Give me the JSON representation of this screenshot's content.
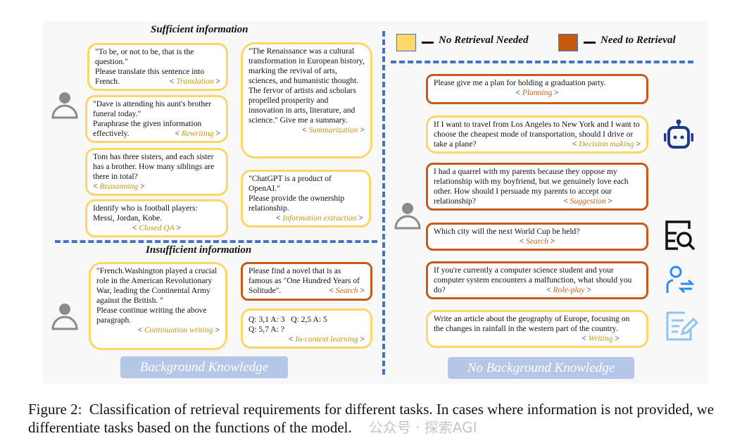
{
  "left_panel": {
    "sufficient_title": "Sufficient information",
    "insufficient_title": "Insufficient information",
    "footer": "Background Knowledge",
    "boxes": [
      {
        "text": "\"To be, or not to be, that is the question.\"\nPlease translate this sentence into French.",
        "tag": "Translation",
        "retrieval": "no"
      },
      {
        "text": "\"Dave is attending his aunt's brother funeral today.\"\nParaphrase the given information effectively.",
        "tag": "Rewriting",
        "retrieval": "no"
      },
      {
        "text": "Tom has three sisters, and each sister has a brother. How many siblings are there in total?",
        "tag": "Reasonning",
        "retrieval": "no"
      },
      {
        "text": "Identify who is football players: Messi, Jordan, Kobe.",
        "tag": "Closed QA",
        "retrieval": "no"
      },
      {
        "text": "\"The Renaissance was a cultural transformation in European history, marking the revival of arts, sciences, and humanistic thought. The fervor of artists and scholars propelled prosperity and innovation in arts, literature, and science.\" Give me a summary.",
        "tag": "Summarization",
        "retrieval": "no"
      },
      {
        "text": "\"ChatGPT is a product of OpenAI.\"\nPlease provide the ownership relationship.",
        "tag": "Information extraction",
        "retrieval": "no"
      },
      {
        "text": "\"French.Washington played a crucial role in the American Revolutionary War, leading the Continental Army against the British. \"\nPlease continue writing the above paragraph.",
        "tag": "Continuation writing",
        "retrieval": "no"
      },
      {
        "text": "Please find a novel that is as famous as \"One Hundred Years of Solitude\".",
        "tag": "Search",
        "retrieval": "yes"
      },
      {
        "text": "Q: 3,1 A: 3   Q: 2,5 A: 5\nQ: 5,7 A: ?",
        "tag": "In-context learning",
        "retrieval": "no"
      }
    ]
  },
  "legend": {
    "no_retrieval": {
      "label": "No Retrieval Needed",
      "color": "#ffd966"
    },
    "need_retrieval": {
      "label": "Need to Retrieval",
      "color": "#c55a11"
    }
  },
  "right_panel": {
    "footer": "No Background Knowledge",
    "boxes": [
      {
        "text": "Please give me a plan for holding a graduation party.",
        "tag": "Planning",
        "retrieval": "yes"
      },
      {
        "text": "If I want to travel from Los Angeles to New York and I want to choose the cheapest mode of transportation, should I drive or take a plane?",
        "tag": "Decision making",
        "retrieval": "no"
      },
      {
        "text": "I had a quarrel with my parents because they oppose my relationship with my boyfriend, but we genuinely love each other. How should I persuade my parents to accept our relationship?",
        "tag": "Suggestion",
        "retrieval": "yes"
      },
      {
        "text": "Which city will the next World Cup be held?",
        "tag": "Search",
        "retrieval": "yes"
      },
      {
        "text": "If you're currently a computer science student and your computer system encounters a malfunction, what should you do?",
        "tag": "Role-play",
        "retrieval": "yes"
      },
      {
        "text": "Write an article about the geography of Europe, focusing on the changes in rainfall in the western part of the country.",
        "tag": "Writing",
        "retrieval": "no"
      }
    ],
    "icons": [
      "robot-icon",
      "document-search-icon",
      "user-switch-icon",
      "edit-document-icon"
    ]
  },
  "caption": {
    "label": "Figure 2:",
    "text": "Classification of retrieval requirements for different tasks. In cases where information is not provided, we differentiate tasks based on the functions of the model."
  },
  "watermark": "公众号 · 探索AGI"
}
